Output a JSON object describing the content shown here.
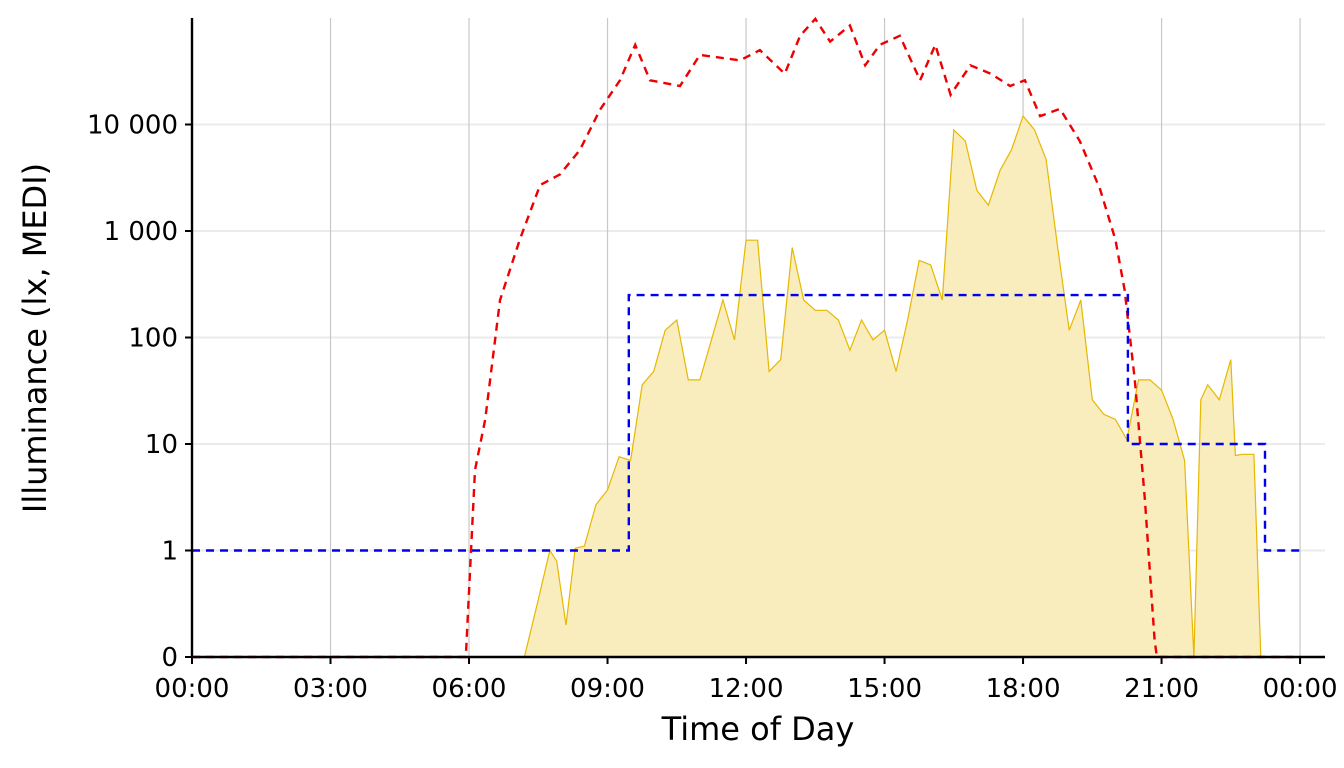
{
  "chart_data": {
    "type": "line",
    "x_label": "Time of Day",
    "y_label": "Illuminance (lx, MEDI)",
    "yscale": "symlog",
    "xlim": [
      0,
      24.54
    ],
    "ylim": [
      0,
      100000
    ],
    "xticks": [
      {
        "value": 0,
        "label": "00:00"
      },
      {
        "value": 3,
        "label": "03:00"
      },
      {
        "value": 6,
        "label": "06:00"
      },
      {
        "value": 9,
        "label": "09:00"
      },
      {
        "value": 12,
        "label": "12:00"
      },
      {
        "value": 15,
        "label": "15:00"
      },
      {
        "value": 18,
        "label": "18:00"
      },
      {
        "value": 21,
        "label": "21:00"
      },
      {
        "value": 24,
        "label": "00:00"
      }
    ],
    "yticks": [
      0,
      1,
      10,
      100,
      {
        "value": 1000,
        "label": "1 000"
      },
      {
        "value": 10000,
        "label": "10 000"
      }
    ],
    "grid": true,
    "series": [
      {
        "style": "area",
        "color": "#e6b800",
        "fill": "#f9ecbd",
        "x": [
          0,
          7.2,
          7.5,
          7.75,
          7.9,
          8.1,
          8.3,
          8.5,
          8.75,
          9.0,
          9.25,
          9.5,
          9.75,
          10.0,
          10.25,
          10.5,
          10.75,
          11.0,
          11.25,
          11.5,
          11.75,
          12.0,
          12.25,
          12.5,
          12.75,
          13.0,
          13.25,
          13.5,
          13.75,
          14.0,
          14.25,
          14.5,
          14.75,
          15.0,
          15.25,
          15.5,
          15.75,
          16.0,
          16.25,
          16.5,
          16.75,
          17.0,
          17.25,
          17.5,
          17.75,
          18.0,
          18.25,
          18.5,
          18.75,
          19.0,
          19.25,
          19.5,
          19.75,
          20.0,
          20.25,
          20.5,
          20.75,
          21.0,
          21.25,
          21.5,
          21.7,
          21.85,
          22.0,
          22.25,
          22.5,
          22.6,
          22.75,
          23.0,
          23.15,
          24
        ],
        "values": [
          0,
          0,
          0.54,
          1,
          0.9,
          0.3,
          1.05,
          1.1,
          2.7,
          3.7,
          7.6,
          7,
          36,
          48,
          117,
          146,
          40,
          40,
          95,
          225,
          95,
          820,
          820,
          48,
          62,
          700,
          225,
          180,
          180,
          146,
          76,
          146,
          95,
          117,
          48,
          146,
          530,
          480,
          225,
          8900,
          7000,
          2400,
          1750,
          3700,
          5800,
          12000,
          8900,
          4700,
          700,
          117,
          225,
          26,
          19,
          17,
          11,
          40,
          40,
          32,
          17,
          7,
          0,
          26,
          36,
          26,
          62,
          7.8,
          8,
          8,
          0,
          0
        ]
      },
      {
        "style": "dashed",
        "color": "#ee0000",
        "x": [
          0,
          5.93,
          6.13,
          6.35,
          6.67,
          7.1,
          7.54,
          7.97,
          8.4,
          8.84,
          9.27,
          9.6,
          9.92,
          10.57,
          11.0,
          11.87,
          12.3,
          12.84,
          13.17,
          13.5,
          13.82,
          14.25,
          14.58,
          14.9,
          15.33,
          15.77,
          16.1,
          16.43,
          16.86,
          17.3,
          17.72,
          18.04,
          18.37,
          18.8,
          19.23,
          19.67,
          20.0,
          20.2,
          20.42,
          20.64,
          20.85,
          20.9,
          24
        ],
        "values": [
          0,
          0,
          5.7,
          17,
          224,
          830,
          2700,
          3400,
          5750,
          13800,
          26000,
          56000,
          26000,
          23000,
          45000,
          40000,
          50000,
          30000,
          68000,
          98000,
          60000,
          85000,
          36000,
          56000,
          68000,
          26000,
          56000,
          19000,
          36000,
          30000,
          23000,
          26000,
          12000,
          14000,
          7000,
          2450,
          830,
          280,
          40,
          3,
          0.16,
          0,
          0
        ]
      },
      {
        "style": "dashed",
        "color": "#0000ee",
        "x": [
          0,
          9.46,
          9.46,
          20.27,
          20.27,
          23.24,
          23.24,
          24
        ],
        "values": [
          1,
          1,
          250,
          250,
          10,
          10,
          1,
          1
        ]
      }
    ]
  }
}
